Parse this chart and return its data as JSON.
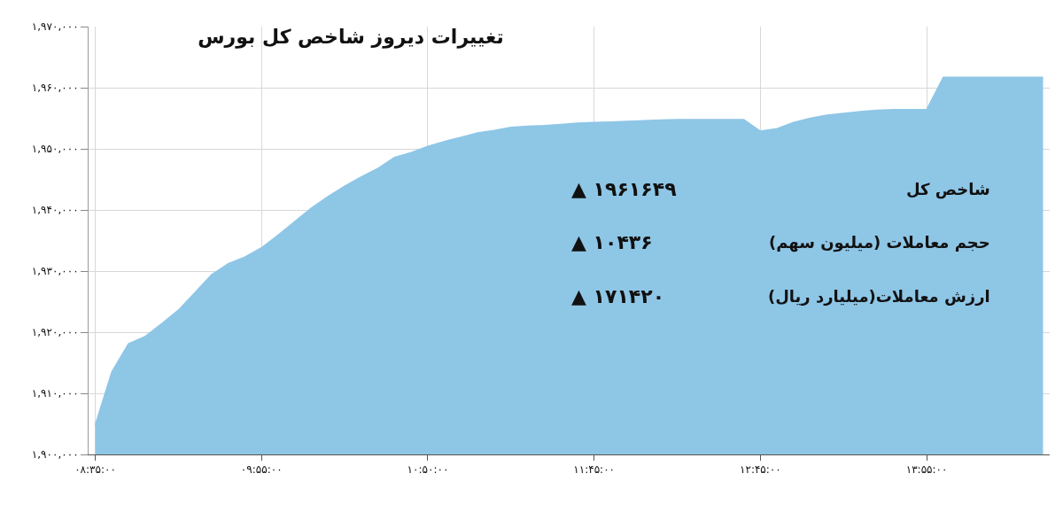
{
  "chart_data": {
    "type": "area",
    "title": "تغییرات دیروز شاخص کل بورس",
    "categories": [
      "۰۸:۳۵:۰۰",
      null,
      null,
      null,
      null,
      null,
      null,
      null,
      null,
      null,
      "۰۹:۵۵:۰۰",
      null,
      null,
      null,
      null,
      null,
      null,
      null,
      null,
      null,
      "۱۰:۵۰:۰۰",
      null,
      null,
      null,
      null,
      null,
      null,
      null,
      null,
      null,
      "۱۱:۴۵:۰۰",
      null,
      null,
      null,
      null,
      null,
      null,
      null,
      null,
      null,
      "۱۲:۴۵:۰۰",
      null,
      null,
      null,
      null,
      null,
      null,
      null,
      null,
      null,
      "۱۳:۵۵:۰۰",
      null,
      null,
      null,
      null,
      null,
      null,
      null
    ],
    "series": [
      {
        "color": "#8ec6e6",
        "values": [
          1904800,
          1913500,
          1918100,
          1919300,
          1921400,
          1923600,
          1926500,
          1929400,
          1931200,
          1932300,
          1933800,
          1935900,
          1938100,
          1940300,
          1942200,
          1943900,
          1945400,
          1946800,
          1948600,
          1949400,
          1950400,
          1951200,
          1951900,
          1952600,
          1953000,
          1953500,
          1953700,
          1953800,
          1954000,
          1954200,
          1954300,
          1954400,
          1954500,
          1954600,
          1954700,
          1954800,
          1954800,
          1954800,
          1954800,
          1954800,
          1952900,
          1953300,
          1954300,
          1955000,
          1955500,
          1955800,
          1956100,
          1956300,
          1956400,
          1956400,
          1956400,
          1961700,
          1961700,
          1961700,
          1961700,
          1961700,
          1961700,
          1961700
        ]
      }
    ],
    "ylim": [
      1900000,
      1970000
    ],
    "yticks": [
      {
        "value": 1900000,
        "label": "۱,۹۰۰,۰۰۰"
      },
      {
        "value": 1910000,
        "label": "۱,۹۱۰,۰۰۰"
      },
      {
        "value": 1920000,
        "label": "۱,۹۲۰,۰۰۰"
      },
      {
        "value": 1930000,
        "label": "۱,۹۳۰,۰۰۰"
      },
      {
        "value": 1940000,
        "label": "۱,۹۴۰,۰۰۰"
      },
      {
        "value": 1950000,
        "label": "۱,۹۵۰,۰۰۰"
      },
      {
        "value": 1960000,
        "label": "۱,۹۶۰,۰۰۰"
      },
      {
        "value": 1970000,
        "label": "۱,۹۷۰,۰۰۰"
      }
    ],
    "grid": true,
    "annotations": [
      "شاخص کل",
      "▲ ۱۹۶۱۶۴۹",
      "حجم معاملات (میلیون سهم)",
      "▲ ۱۰۴۳۶",
      "ارزش معاملات(میلیارد ریال)",
      "▲ ۱۷۱۴۲۰"
    ]
  }
}
